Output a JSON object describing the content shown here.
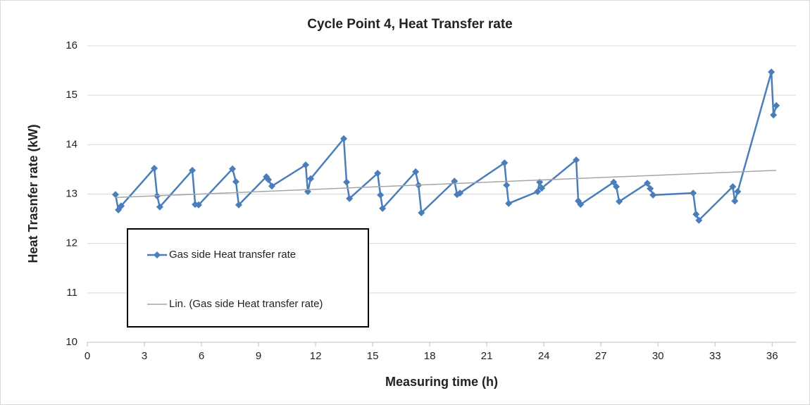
{
  "chart_data": {
    "type": "line",
    "title": "Cycle Point 4, Heat Transfer rate",
    "x_label": "Measuring time (h)",
    "y_label": "Heat Trasnfer rate (kW)",
    "xlim": [
      0,
      37.25
    ],
    "xticks": [
      0,
      3,
      6,
      9,
      12,
      15,
      18,
      21,
      24,
      27,
      30,
      33,
      36
    ],
    "ylim": [
      10,
      16
    ],
    "yticks": [
      10,
      11,
      12,
      13,
      14,
      15,
      16
    ],
    "grid": true,
    "legend": "left",
    "series": [
      {
        "name": "Gas side Heat transfer rate",
        "color": "#4a7ebb",
        "marker": "diamond",
        "x": [
          1.48,
          1.63,
          1.78,
          3.52,
          3.67,
          3.81,
          5.52,
          5.67,
          5.85,
          7.63,
          7.81,
          7.96,
          9.41,
          9.52,
          9.7,
          11.48,
          11.59,
          11.74,
          13.48,
          13.63,
          13.78,
          15.26,
          15.41,
          15.52,
          17.26,
          17.41,
          17.56,
          19.3,
          19.44,
          19.59,
          21.93,
          22.04,
          22.15,
          23.67,
          23.78,
          23.89,
          25.7,
          25.81,
          25.93,
          27.67,
          27.81,
          27.96,
          29.44,
          29.59,
          29.74,
          31.85,
          32.0,
          32.15,
          33.93,
          34.04,
          34.19,
          35.96,
          36.07,
          36.22
        ],
        "values": [
          12.99,
          12.68,
          12.76,
          13.52,
          12.96,
          12.74,
          13.48,
          12.79,
          12.78,
          13.51,
          13.25,
          12.78,
          13.35,
          13.29,
          13.16,
          13.59,
          13.05,
          13.31,
          14.12,
          13.24,
          12.91,
          13.42,
          12.98,
          12.71,
          13.45,
          13.18,
          12.62,
          13.26,
          12.99,
          13.02,
          13.63,
          13.18,
          12.81,
          13.05,
          13.24,
          13.12,
          13.69,
          12.86,
          12.79,
          13.24,
          13.15,
          12.85,
          13.22,
          13.11,
          12.98,
          13.02,
          12.59,
          12.47,
          13.15,
          12.86,
          13.05,
          15.47,
          14.6,
          14.79
        ]
      },
      {
        "name": "Lin. (Gas side Heat transfer rate)",
        "color": "#a6a6a6",
        "marker": "none",
        "x": [
          1.48,
          36.22
        ],
        "values": [
          12.93,
          13.48
        ]
      }
    ]
  }
}
